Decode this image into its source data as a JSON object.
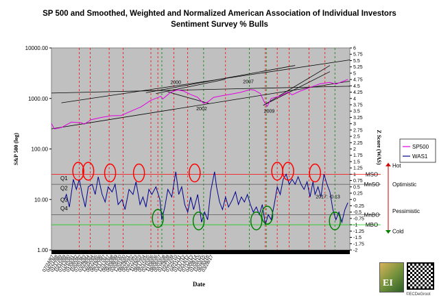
{
  "chart_data": {
    "type": "line",
    "title": "SP 500 and Smoothed, Weighted and Normalized American Association of Individual Investors",
    "subtitle": "Sentiment Survey % Bulls",
    "xlabel": "Date",
    "ylabel_left": "S&P 500 (log)",
    "ylabel_right": "Z Score (WAS)",
    "left_axis": {
      "scale": "log",
      "ylim": [
        1,
        10000
      ],
      "ticks": [
        "1.00",
        "10.00",
        "100.00",
        "1000.00",
        "10000.00"
      ]
    },
    "right_axis": {
      "ylim": [
        -2,
        6
      ],
      "ticks": [
        "-2",
        "-1.75",
        "-1.5",
        "-1.25",
        "-1",
        "-0.75",
        "-0.5",
        "-0.25",
        "0",
        "0.25",
        "0.5",
        "0.75",
        "1",
        "1.25",
        "1.5",
        "1.75",
        "2",
        "2.25",
        "2.5",
        "2.75",
        "3",
        "3.25",
        "3.5",
        "3.75",
        "4",
        "4.25",
        "4.5",
        "4.75",
        "5",
        "5.25",
        "5.5",
        "5.75",
        "6"
      ]
    },
    "x_range": [
      1987.5,
      2017.5
    ],
    "x_tick_labels": [
      "07/24/87",
      "04/21/88",
      "01/17/89",
      "10/15/89",
      "07/13/90",
      "04/10/91",
      "01/06/92",
      "10/03/92",
      "07/01/93",
      "03/29/94",
      "12/25/94",
      "09/22/95",
      "06/19/96",
      "03/17/97",
      "12/13/97",
      "09/10/98",
      "06/08/99",
      "03/05/00",
      "12/01/00",
      "08/29/01",
      "05/27/02",
      "02/22/03",
      "11/19/03",
      "08/17/04",
      "05/15/05",
      "02/10/06",
      "11/08/06",
      "08/06/07",
      "05/03/08",
      "01/29/09",
      "10/27/09",
      "07/25/10",
      "04/21/11",
      "01/17/12",
      "10/14/12",
      "07/12/13",
      "04/09/14",
      "01/05/15",
      "10/03/15",
      "06/30/16",
      "03/28/17"
    ],
    "series": [
      {
        "name": "SP500",
        "axis": "left",
        "color": "#e100e1",
        "points": [
          [
            1987.5,
            320
          ],
          [
            1987.8,
            250
          ],
          [
            1988.5,
            265
          ],
          [
            1989.5,
            340
          ],
          [
            1990.5,
            330
          ],
          [
            1990.8,
            310
          ],
          [
            1991.5,
            380
          ],
          [
            1992.5,
            420
          ],
          [
            1993.5,
            455
          ],
          [
            1994.5,
            460
          ],
          [
            1995.5,
            560
          ],
          [
            1996.5,
            680
          ],
          [
            1997.5,
            920
          ],
          [
            1998.5,
            1100
          ],
          [
            1998.7,
            980
          ],
          [
            1999.5,
            1330
          ],
          [
            2000.2,
            1480
          ],
          [
            2000.8,
            1400
          ],
          [
            2001.5,
            1200
          ],
          [
            2002.2,
            1050
          ],
          [
            2002.8,
            800
          ],
          [
            2003.2,
            850
          ],
          [
            2003.8,
            1050
          ],
          [
            2004.5,
            1120
          ],
          [
            2005.5,
            1210
          ],
          [
            2006.5,
            1320
          ],
          [
            2007.5,
            1500
          ],
          [
            2007.9,
            1460
          ],
          [
            2008.5,
            1250
          ],
          [
            2008.9,
            850
          ],
          [
            2009.2,
            700
          ],
          [
            2009.6,
            1000
          ],
          [
            2010.5,
            1120
          ],
          [
            2011.3,
            1340
          ],
          [
            2011.7,
            1180
          ],
          [
            2012.5,
            1400
          ],
          [
            2013.5,
            1650
          ],
          [
            2014.5,
            1950
          ],
          [
            2015.5,
            2080
          ],
          [
            2016.1,
            1920
          ],
          [
            2016.8,
            2180
          ],
          [
            2017.3,
            2380
          ]
        ]
      },
      {
        "name": "WAS1",
        "axis": "right",
        "color": "#00008b",
        "points": [
          [
            1988.8,
            0
          ],
          [
            1989.0,
            0.2
          ],
          [
            1989.3,
            -0.3
          ],
          [
            1989.7,
            0.8
          ],
          [
            1990.0,
            0.4
          ],
          [
            1990.3,
            0.8
          ],
          [
            1990.6,
            0.2
          ],
          [
            1990.9,
            -0.3
          ],
          [
            1991.2,
            0.5
          ],
          [
            1991.6,
            0.6
          ],
          [
            1991.9,
            0.2
          ],
          [
            1992.2,
            0.9
          ],
          [
            1992.6,
            0.2
          ],
          [
            1992.9,
            -0.1
          ],
          [
            1993.2,
            0.5
          ],
          [
            1993.6,
            0.3
          ],
          [
            1993.9,
            0.6
          ],
          [
            1994.2,
            -0.2
          ],
          [
            1994.6,
            0.0
          ],
          [
            1994.9,
            -0.4
          ],
          [
            1995.3,
            0.4
          ],
          [
            1995.7,
            0.2
          ],
          [
            1996.0,
            0.7
          ],
          [
            1996.4,
            -0.2
          ],
          [
            1996.7,
            0.1
          ],
          [
            1997.0,
            -0.3
          ],
          [
            1997.3,
            0.4
          ],
          [
            1997.6,
            0.2
          ],
          [
            1998.0,
            0.5
          ],
          [
            1998.4,
            0.0
          ],
          [
            1998.6,
            -0.8
          ],
          [
            1998.9,
            -0.3
          ],
          [
            1999.2,
            0.4
          ],
          [
            1999.6,
            0.1
          ],
          [
            2000.0,
            1.1
          ],
          [
            2000.3,
            0.2
          ],
          [
            2000.6,
            0.5
          ],
          [
            2000.9,
            -0.2
          ],
          [
            2001.2,
            -0.5
          ],
          [
            2001.5,
            0.1
          ],
          [
            2001.8,
            -0.4
          ],
          [
            2002.2,
            0.2
          ],
          [
            2002.6,
            -0.9
          ],
          [
            2002.9,
            -0.5
          ],
          [
            2003.2,
            -0.8
          ],
          [
            2003.5,
            0.3
          ],
          [
            2003.9,
            1.1
          ],
          [
            2004.1,
            0.5
          ],
          [
            2004.4,
            -0.1
          ],
          [
            2004.7,
            -0.4
          ],
          [
            2005.0,
            0.1
          ],
          [
            2005.3,
            -0.3
          ],
          [
            2005.7,
            0.0
          ],
          [
            2006.0,
            0.3
          ],
          [
            2006.3,
            -0.2
          ],
          [
            2006.6,
            0.1
          ],
          [
            2006.9,
            -0.1
          ],
          [
            2007.2,
            0.2
          ],
          [
            2007.5,
            -0.2
          ],
          [
            2007.8,
            -0.5
          ],
          [
            2008.1,
            -0.3
          ],
          [
            2008.4,
            -0.6
          ],
          [
            2008.7,
            -0.2
          ],
          [
            2009.0,
            -1.0
          ],
          [
            2009.3,
            -0.6
          ],
          [
            2009.6,
            -0.8
          ],
          [
            2009.9,
            -0.2
          ],
          [
            2010.2,
            0.5
          ],
          [
            2010.5,
            0.2
          ],
          [
            2010.8,
            0.8
          ],
          [
            2011.1,
            1.0
          ],
          [
            2011.4,
            0.6
          ],
          [
            2011.7,
            0.8
          ],
          [
            2012.0,
            0.6
          ],
          [
            2012.3,
            0.9
          ],
          [
            2012.6,
            0.6
          ],
          [
            2012.9,
            0.4
          ],
          [
            2013.2,
            0.7
          ],
          [
            2013.5,
            0.1
          ],
          [
            2013.8,
            0.7
          ],
          [
            2014.0,
            0.2
          ],
          [
            2014.3,
            0.5
          ],
          [
            2014.6,
            0.1
          ],
          [
            2014.9,
            1.0
          ],
          [
            2015.2,
            0.6
          ],
          [
            2015.5,
            0.3
          ],
          [
            2015.8,
            -0.4
          ],
          [
            2016.1,
            -0.8
          ],
          [
            2016.4,
            -0.5
          ],
          [
            2016.7,
            -0.9
          ],
          [
            2017.0,
            -0.4
          ],
          [
            2017.3,
            -0.13
          ]
        ]
      }
    ],
    "zones": [
      {
        "label": "MSO",
        "value": 1.0,
        "color": "#ff0000"
      },
      {
        "label": "MnSO",
        "value": 0.6,
        "color": "#555555"
      },
      {
        "label": "MnBO",
        "value": -0.6,
        "color": "#555555"
      },
      {
        "label": "MBO",
        "value": -1.0,
        "color": "#00cc00"
      }
    ],
    "quartile_labels": [
      {
        "label": "Q1",
        "value": 0.85
      },
      {
        "label": "Q2",
        "value": 0.45
      },
      {
        "label": "Q3",
        "value": 0.0
      },
      {
        "label": "Q4",
        "value": -0.35
      }
    ],
    "regime_labels": [
      {
        "label": "Hot",
        "value": 1.35
      },
      {
        "label": "Optimistic",
        "value": 0.6
      },
      {
        "label": "Pessimistic",
        "value": -0.45
      },
      {
        "label": "Cold",
        "value": -1.25
      }
    ],
    "red_vlines": [
      1990.3,
      1991.4,
      1993.3,
      1994.7,
      1997.5,
      1998.2,
      1999.8,
      2001.2,
      2005.0,
      2009.0,
      2010.2,
      2011.4,
      2013.4,
      2015.0
    ],
    "green_vlines": [
      1998.6,
      2002.8,
      2007.4,
      2009.1,
      2016.0
    ],
    "red_circles": [
      [
        1990.2,
        1.12
      ],
      [
        1991.2,
        1.12
      ],
      [
        1993.4,
        1.05
      ],
      [
        1996.3,
        1.05
      ],
      [
        2001.9,
        1.05
      ],
      [
        2010.2,
        1.12
      ],
      [
        2011.3,
        1.12
      ],
      [
        2014.0,
        1.05
      ]
    ],
    "green_circles": [
      [
        1998.2,
        -0.75
      ],
      [
        2002.3,
        -0.85
      ],
      [
        2008.1,
        -0.85
      ],
      [
        2009.2,
        -0.62
      ],
      [
        2016.0,
        -0.85
      ]
    ],
    "trendlines": [
      {
        "axis": "left",
        "points": [
          [
            1988.5,
            820
          ],
          [
            2017.5,
            5800
          ]
        ]
      },
      {
        "axis": "left",
        "points": [
          [
            1997.0,
            1300
          ],
          [
            2012.0,
            4500
          ]
        ]
      },
      {
        "axis": "left",
        "points": [
          [
            1987.5,
            250
          ],
          [
            2017.5,
            2200
          ]
        ]
      },
      {
        "axis": "left",
        "points": [
          [
            1987.5,
            1280
          ],
          [
            2017.5,
            1750
          ]
        ]
      },
      {
        "axis": "left",
        "points": [
          [
            1999.2,
            1350
          ],
          [
            2003.3,
            800
          ]
        ]
      },
      {
        "axis": "left",
        "points": [
          [
            1998.0,
            1250
          ],
          [
            2005.0,
            2400
          ]
        ]
      },
      {
        "axis": "left",
        "points": [
          [
            2008.8,
            730
          ],
          [
            2015.5,
            3400
          ]
        ]
      },
      {
        "axis": "left",
        "points": [
          [
            2008.8,
            730
          ],
          [
            2015.5,
            4500
          ]
        ]
      }
    ],
    "annotations": [
      {
        "text": "2000",
        "x": 2000.0,
        "y": 1950
      },
      {
        "text": "2002",
        "x": 2002.6,
        "y": 580
      },
      {
        "text": "2007",
        "x": 2007.3,
        "y": 2000
      },
      {
        "text": "2009",
        "x": 2009.4,
        "y": 520
      },
      {
        "text": "2017: -0.13",
        "x": 2015.3,
        "yz": 0.05
      }
    ],
    "legend": [
      "SP500",
      "WAS1"
    ],
    "legend_position": "right"
  },
  "branding": {
    "logo_text": "EI",
    "credit": "©ECDeGroot"
  }
}
